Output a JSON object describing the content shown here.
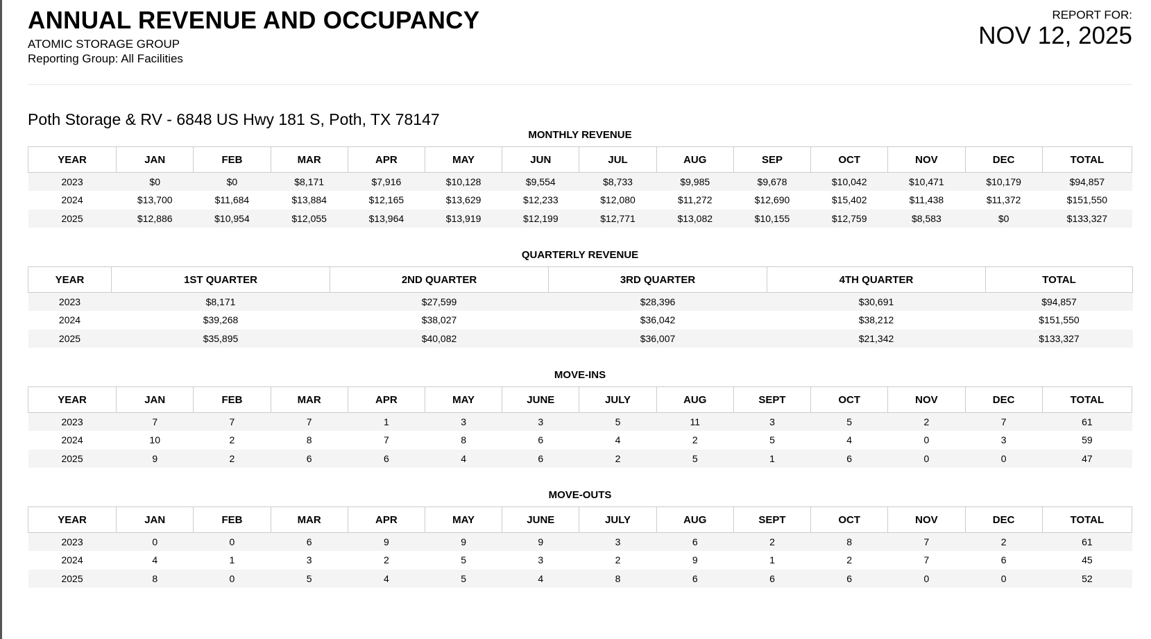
{
  "header": {
    "title": "ANNUAL REVENUE AND OCCUPANCY",
    "organization": "ATOMIC STORAGE GROUP",
    "reporting_group": "Reporting Group: All Facilities",
    "report_for_label": "REPORT FOR:",
    "report_date": "NOV 12, 2025"
  },
  "facility": "Poth Storage & RV - 6848 US Hwy 181 S, Poth, TX 78147",
  "monthly_revenue": {
    "title": "MONTHLY REVENUE",
    "columns": [
      "YEAR",
      "JAN",
      "FEB",
      "MAR",
      "APR",
      "MAY",
      "JUN",
      "JUL",
      "AUG",
      "SEP",
      "OCT",
      "NOV",
      "DEC",
      "TOTAL"
    ],
    "rows": [
      [
        "2023",
        "$0",
        "$0",
        "$8,171",
        "$7,916",
        "$10,128",
        "$9,554",
        "$8,733",
        "$9,985",
        "$9,678",
        "$10,042",
        "$10,471",
        "$10,179",
        "$94,857"
      ],
      [
        "2024",
        "$13,700",
        "$11,684",
        "$13,884",
        "$12,165",
        "$13,629",
        "$12,233",
        "$12,080",
        "$11,272",
        "$12,690",
        "$15,402",
        "$11,438",
        "$11,372",
        "$151,550"
      ],
      [
        "2025",
        "$12,886",
        "$10,954",
        "$12,055",
        "$13,964",
        "$13,919",
        "$12,199",
        "$12,771",
        "$13,082",
        "$10,155",
        "$12,759",
        "$8,583",
        "$0",
        "$133,327"
      ]
    ]
  },
  "quarterly_revenue": {
    "title": "QUARTERLY REVENUE",
    "columns": [
      "YEAR",
      "1ST QUARTER",
      "2ND QUARTER",
      "3RD QUARTER",
      "4TH QUARTER",
      "TOTAL"
    ],
    "rows": [
      [
        "2023",
        "$8,171",
        "$27,599",
        "$28,396",
        "$30,691",
        "$94,857"
      ],
      [
        "2024",
        "$39,268",
        "$38,027",
        "$36,042",
        "$38,212",
        "$151,550"
      ],
      [
        "2025",
        "$35,895",
        "$40,082",
        "$36,007",
        "$21,342",
        "$133,327"
      ]
    ]
  },
  "move_ins": {
    "title": "MOVE-INS",
    "columns": [
      "YEAR",
      "JAN",
      "FEB",
      "MAR",
      "APR",
      "MAY",
      "JUNE",
      "JULY",
      "AUG",
      "SEPT",
      "OCT",
      "NOV",
      "DEC",
      "TOTAL"
    ],
    "rows": [
      [
        "2023",
        "7",
        "7",
        "7",
        "1",
        "3",
        "3",
        "5",
        "11",
        "3",
        "5",
        "2",
        "7",
        "61"
      ],
      [
        "2024",
        "10",
        "2",
        "8",
        "7",
        "8",
        "6",
        "4",
        "2",
        "5",
        "4",
        "0",
        "3",
        "59"
      ],
      [
        "2025",
        "9",
        "2",
        "6",
        "6",
        "4",
        "6",
        "2",
        "5",
        "1",
        "6",
        "0",
        "0",
        "47"
      ]
    ]
  },
  "move_outs": {
    "title": "MOVE-OUTS",
    "columns": [
      "YEAR",
      "JAN",
      "FEB",
      "MAR",
      "APR",
      "MAY",
      "JUNE",
      "JULY",
      "AUG",
      "SEPT",
      "OCT",
      "NOV",
      "DEC",
      "TOTAL"
    ],
    "rows": [
      [
        "2023",
        "0",
        "0",
        "6",
        "9",
        "9",
        "9",
        "3",
        "6",
        "2",
        "8",
        "7",
        "2",
        "61"
      ],
      [
        "2024",
        "4",
        "1",
        "3",
        "2",
        "5",
        "3",
        "2",
        "9",
        "1",
        "2",
        "7",
        "6",
        "45"
      ],
      [
        "2025",
        "8",
        "0",
        "5",
        "4",
        "5",
        "4",
        "8",
        "6",
        "6",
        "6",
        "0",
        "0",
        "52"
      ]
    ]
  }
}
